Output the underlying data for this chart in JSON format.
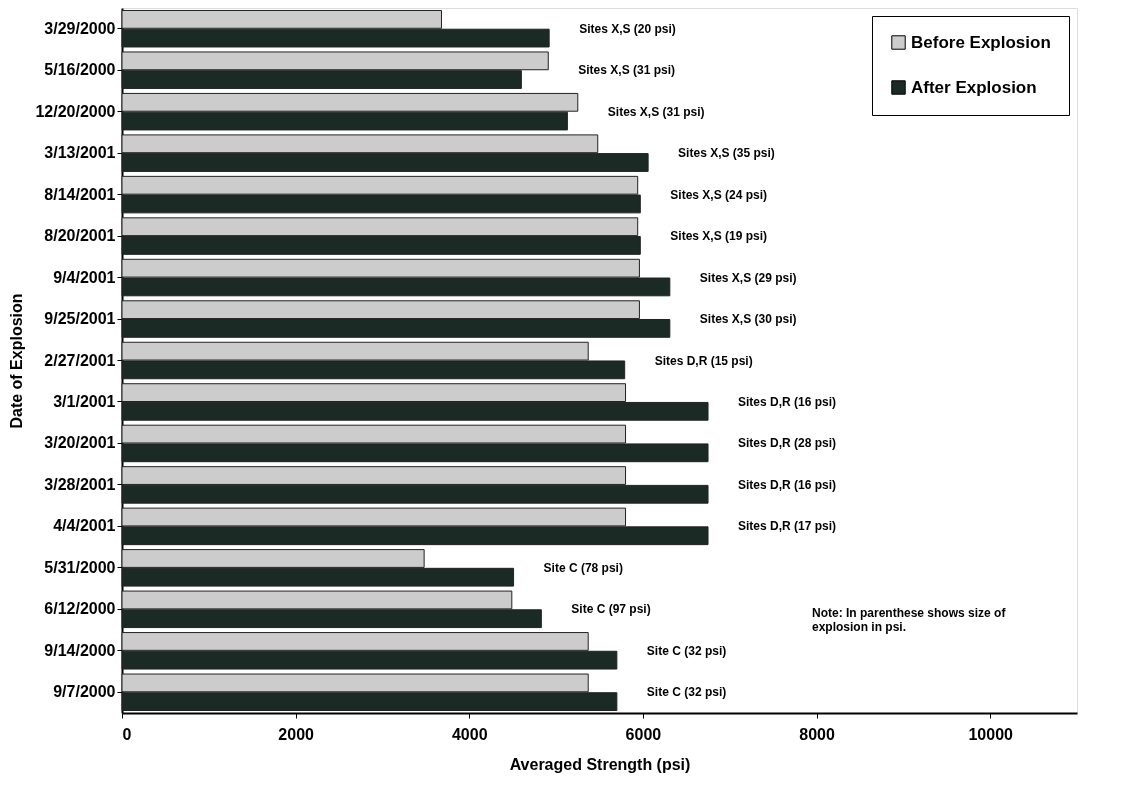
{
  "chart_data": {
    "type": "bar",
    "orientation": "horizontal",
    "categories": [
      "3/29/2000",
      "5/16/2000",
      "12/20/2000",
      "3/13/2001",
      "8/14/2001",
      "8/20/2001",
      "9/4/2001",
      "9/25/2001",
      "2/27/2001",
      "3/1/2001",
      "3/20/2001",
      "3/28/2001",
      "4/4/2001",
      "5/31/2000",
      "6/12/2000",
      "9/14/2000",
      "9/7/2000"
    ],
    "series": [
      {
        "name": "Before Explosion",
        "color": "#cccccc",
        "values": [
          3680,
          4910,
          5250,
          5480,
          5940,
          5940,
          5960,
          5960,
          5370,
          5800,
          5800,
          5800,
          5800,
          3480,
          4490,
          5370,
          5370
        ]
      },
      {
        "name": "After Explosion",
        "color": "#1b2a24",
        "values": [
          4920,
          4600,
          5130,
          6060,
          5970,
          5970,
          6310,
          6310,
          5790,
          6750,
          6750,
          6750,
          6750,
          4510,
          4830,
          5700,
          5700
        ]
      }
    ],
    "xlabel": "Averaged Strength (psi)",
    "ylabel": "Date of Explosion",
    "xlim": [
      0,
      11000
    ],
    "xticks": [
      0,
      2000,
      4000,
      6000,
      8000,
      10000
    ],
    "grid": false,
    "legend": "top right",
    "annotations": [
      {
        "text": "Sites X,S (20 psi)",
        "x": 4920,
        "y": "3/29/2000"
      },
      {
        "text": "Sites X,S (31 psi)",
        "x": 4910,
        "y": "5/16/2000"
      },
      {
        "text": "Sites X,S (31 psi)",
        "x": 5250,
        "y": "12/20/2000"
      },
      {
        "text": "Sites X,S (35 psi)",
        "x": 6060,
        "y": "3/13/2001"
      },
      {
        "text": "Sites X,S (24 psi)",
        "x": 5970,
        "y": "8/14/2001"
      },
      {
        "text": "Sites X,S (19 psi)",
        "x": 5970,
        "y": "8/20/2001"
      },
      {
        "text": "Sites X,S (29 psi)",
        "x": 6310,
        "y": "9/4/2001"
      },
      {
        "text": "Sites X,S (30 psi)",
        "x": 6310,
        "y": "9/25/2001"
      },
      {
        "text": "Sites D,R (15 psi)",
        "x": 5790,
        "y": "2/27/2001"
      },
      {
        "text": "Sites D,R (16 psi)",
        "x": 6750,
        "y": "3/1/2001"
      },
      {
        "text": "Sites D,R (28 psi)",
        "x": 6750,
        "y": "3/20/2001"
      },
      {
        "text": "Sites D,R (16 psi)",
        "x": 6750,
        "y": "3/28/2001"
      },
      {
        "text": "Sites D,R (17 psi)",
        "x": 6750,
        "y": "4/4/2001"
      },
      {
        "text": "Site C (78 psi)",
        "x": 4510,
        "y": "5/31/2000"
      },
      {
        "text": "Site C (97 psi)",
        "x": 4830,
        "y": "6/12/2000"
      },
      {
        "text": "Site C (32 psi)",
        "x": 5700,
        "y": "9/14/2000"
      },
      {
        "text": "Site C (32 psi)",
        "x": 5700,
        "y": "9/7/2000"
      },
      "Note: In parenthese shows size of\nexplosion in psi."
    ]
  }
}
